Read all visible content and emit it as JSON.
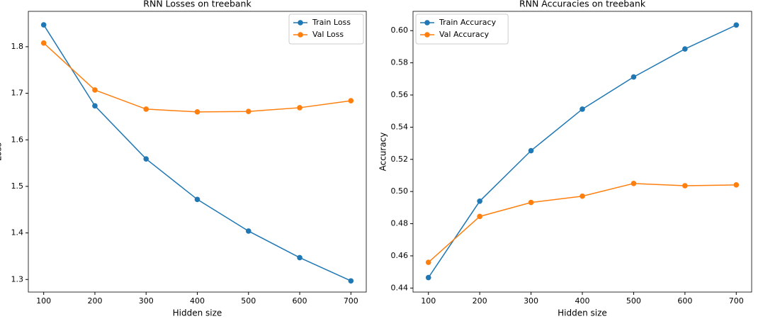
{
  "chart_data": [
    {
      "type": "line",
      "title": "RNN Losses on treebank",
      "x_label": "Hidden size",
      "y_label": "Loss",
      "x": [
        100,
        200,
        300,
        400,
        500,
        600,
        700
      ],
      "series": [
        {
          "name": "Train Loss",
          "color": "#1f77b4",
          "values": [
            1.847,
            1.673,
            1.559,
            1.472,
            1.404,
            1.347,
            1.297
          ]
        },
        {
          "name": "Val Loss",
          "color": "#ff7f0e",
          "values": [
            1.808,
            1.707,
            1.666,
            1.66,
            1.661,
            1.669,
            1.684
          ]
        }
      ],
      "xlim": [
        70,
        730
      ],
      "xticks": [
        100,
        200,
        300,
        400,
        500,
        600,
        700
      ],
      "ylim": [
        1.273,
        1.876
      ],
      "yticks": [
        1.3,
        1.4,
        1.5,
        1.6,
        1.7,
        1.8
      ],
      "grid": false,
      "legend": "upper-right",
      "marker": "circle"
    },
    {
      "type": "line",
      "title": "RNN Accuracies on treebank",
      "x_label": "Hidden size",
      "y_label": "Accuracy",
      "x": [
        100,
        200,
        300,
        400,
        500,
        600,
        700
      ],
      "series": [
        {
          "name": "Train Accuracy",
          "color": "#1f77b4",
          "values": [
            0.4465,
            0.494,
            0.5254,
            0.5512,
            0.5712,
            0.5886,
            0.6035
          ]
        },
        {
          "name": "Val Accuracy",
          "color": "#ff7f0e",
          "values": [
            0.456,
            0.4845,
            0.4932,
            0.4971,
            0.505,
            0.5036,
            0.5041
          ]
        }
      ],
      "xlim": [
        70,
        730
      ],
      "xticks": [
        100,
        200,
        300,
        400,
        500,
        600,
        700
      ],
      "ylim": [
        0.4375,
        0.612
      ],
      "yticks": [
        0.44,
        0.46,
        0.48,
        {
          "value": 0.5,
          "label": "0.50"
        },
        0.52,
        0.54,
        0.56,
        0.58,
        {
          "value": 0.6,
          "label": "0.60"
        }
      ],
      "grid": false,
      "legend": "upper-left",
      "marker": "circle"
    }
  ]
}
